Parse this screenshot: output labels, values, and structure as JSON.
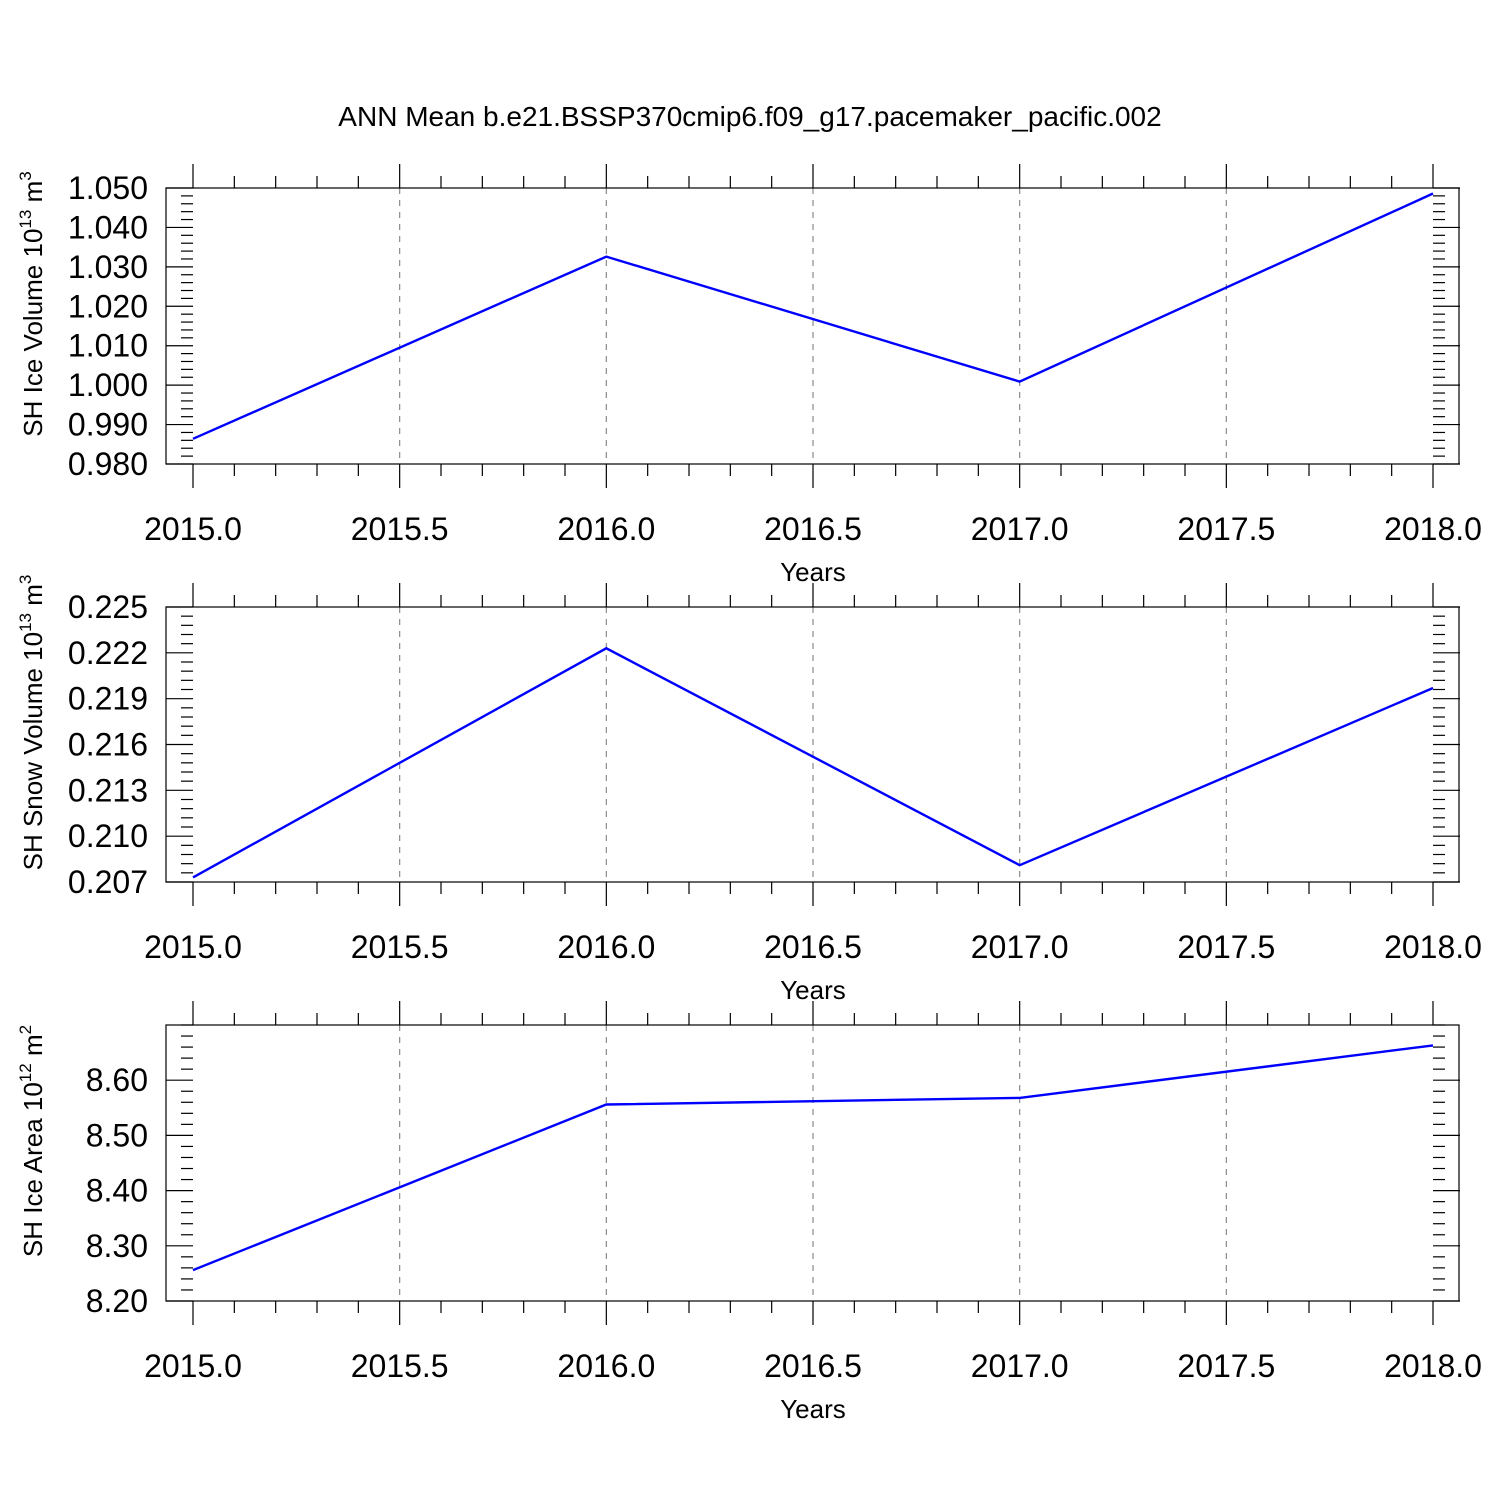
{
  "title": "ANN Mean b.e21.BSSP370cmip6.f09_g17.pacemaker_pacific.002",
  "line_color": "#0000ff",
  "grid_color": "#8a8a8a",
  "chart_data": [
    {
      "type": "line",
      "xlabel": "Years",
      "ylabel": {
        "text": "SH Ice Volume 10",
        "exp": "13",
        "unit": " m",
        "unit_exp": "3"
      },
      "xlim": [
        2015.0,
        2018.0
      ],
      "ylim": [
        0.98,
        1.05
      ],
      "x_ticks": [
        "2015.0",
        "2015.5",
        "2016.0",
        "2016.5",
        "2017.0",
        "2017.5",
        "2018.0"
      ],
      "y_ticks": [
        "0.980",
        "0.990",
        "1.000",
        "1.010",
        "1.020",
        "1.030",
        "1.040",
        "1.050"
      ],
      "y_minor_step": 0.002,
      "x_minor_step": 0.1,
      "grid": "vertical dashed at major x ticks",
      "x": [
        2015,
        2016,
        2017,
        2018
      ],
      "y": [
        0.9864,
        1.0326,
        1.0009,
        1.0486
      ]
    },
    {
      "type": "line",
      "xlabel": "Years",
      "ylabel": {
        "text": "SH Snow Volume 10",
        "exp": "13",
        "unit": " m",
        "unit_exp": "3"
      },
      "xlim": [
        2015.0,
        2018.0
      ],
      "ylim": [
        0.207,
        0.225
      ],
      "x_ticks": [
        "2015.0",
        "2015.5",
        "2016.0",
        "2016.5",
        "2017.0",
        "2017.5",
        "2018.0"
      ],
      "y_ticks": [
        "0.207",
        "0.210",
        "0.213",
        "0.216",
        "0.219",
        "0.222",
        "0.225"
      ],
      "y_minor_step": 0.0006,
      "x_minor_step": 0.1,
      "grid": "vertical dashed at major x ticks",
      "x": [
        2015,
        2016,
        2017,
        2018
      ],
      "y": [
        0.2073,
        0.2223,
        0.2081,
        0.2197
      ]
    },
    {
      "type": "line",
      "xlabel": "Years",
      "ylabel": {
        "text": "SH Ice Area 10",
        "exp": "12",
        "unit": " m",
        "unit_exp": "2"
      },
      "xlim": [
        2015.0,
        2018.0
      ],
      "ylim": [
        8.2,
        8.7
      ],
      "x_ticks": [
        "2015.0",
        "2015.5",
        "2016.0",
        "2016.5",
        "2017.0",
        "2017.5",
        "2018.0"
      ],
      "y_ticks": [
        "8.20",
        "8.30",
        "8.40",
        "8.50",
        "8.60"
      ],
      "y_minor_step": 0.02,
      "x_minor_step": 0.1,
      "grid": "vertical dashed at major x ticks",
      "x": [
        2015,
        2016,
        2017,
        2018
      ],
      "y": [
        8.256,
        8.556,
        8.568,
        8.663
      ]
    }
  ]
}
